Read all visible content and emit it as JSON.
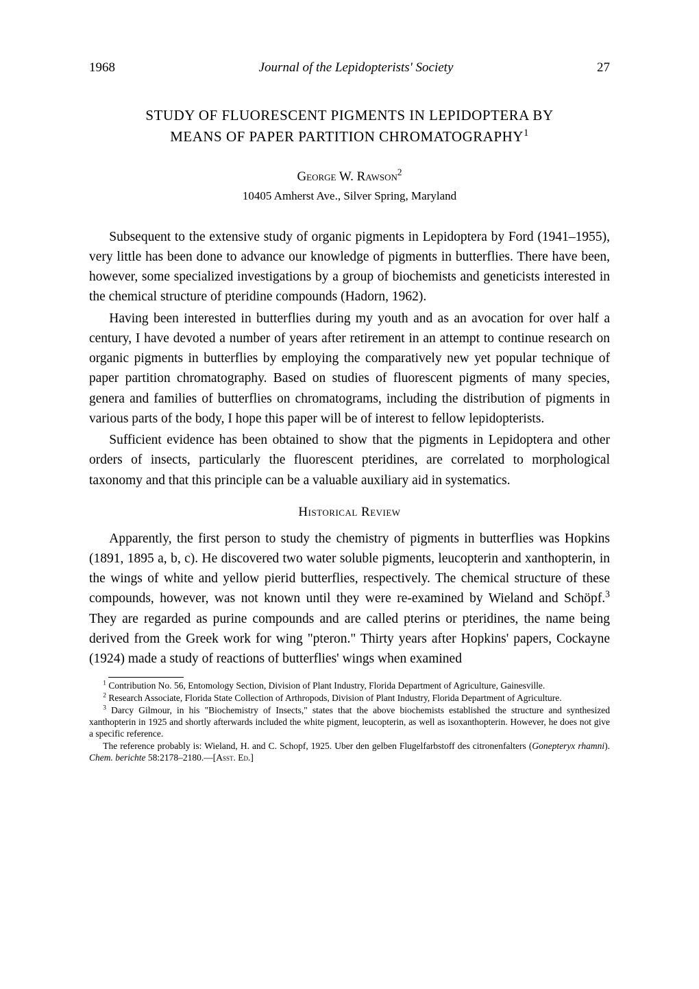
{
  "header": {
    "year": "1968",
    "journal": "Journal of the Lepidopterists' Society",
    "page": "27"
  },
  "title_line1": "STUDY OF FLUORESCENT PIGMENTS IN LEPIDOPTERA BY",
  "title_line2": "MEANS OF PAPER PARTITION CHROMATOGRAPHY",
  "title_sup": "1",
  "author": {
    "name": "George W. Rawson",
    "name_sup": "2",
    "address": "10405 Amherst Ave., Silver Spring, Maryland"
  },
  "para1": "Subsequent to the extensive study of organic pigments in Lepidoptera by Ford (1941–1955), very little has been done to advance our knowledge of pigments in butterflies. There have been, however, some specialized investigations by a group of biochemists and geneticists interested in the chemical structure of pteridine compounds (Hadorn, 1962).",
  "para2": "Having been interested in butterflies during my youth and as an avocation for over half a century, I have devoted a number of years after retirement in an attempt to continue research on organic pigments in butterflies by employing the comparatively new yet popular technique of paper partition chromatography. Based on studies of fluorescent pigments of many species, genera and families of butterflies on chromatograms, including the distribution of pigments in various parts of the body, I hope this paper will be of interest to fellow lepidopterists.",
  "para3": "Sufficient evidence has been obtained to show that the pigments in Lepidoptera and other orders of insects, particularly the fluorescent pteridines, are correlated to morphological taxonomy and that this principle can be a valuable auxiliary aid in systematics.",
  "section_heading": "Historical Review",
  "para4_a": "Apparently, the first person to study the chemistry of pigments in butterflies was Hopkins (1891, 1895 a, b, c). He discovered two water soluble pigments, leucopterin and xanthopterin, in the wings of white and yellow pierid butterflies, respectively. The chemical structure of these compounds, however, was not known until they were re-examined by Wieland and Schöpf.",
  "para4_sup": "3",
  "para4_b": " They are regarded as purine compounds and are called pterins or pteridines, the name being derived from the Greek work for wing \"pteron.\" Thirty years after Hopkins' papers, Cockayne (1924) made a study of reactions of butterflies' wings when examined",
  "footnotes": {
    "f1_sup": "1",
    "f1": " Contribution No. 56, Entomology Section, Division of Plant Industry, Florida Department of Agriculture, Gainesville.",
    "f2_sup": "2",
    "f2": " Research Associate, Florida State Collection of Arthropods, Division of Plant Industry, Florida Department of Agriculture.",
    "f3_sup": "3",
    "f3_a": " Darcy Gilmour, in his \"Biochemistry of Insects,\" states that the above biochemists established the structure and synthesized xanthopterin in 1925 and shortly afterwards included the white pigment, leucopterin, as well as isoxanthopterin. However, he does not give a specific reference.",
    "f3_b": "The reference probably is: Wieland, H. and C. Schopf, 1925. Uber den gelben Flugelfarbstoff des citronenfalters (",
    "f3_ital": "Gonepteryx rhamni",
    "f3_c": "). ",
    "f3_ital2": "Chem. berichte",
    "f3_d": " 58:2178–2180.—[",
    "f3_sc": "Asst. Ed.",
    "f3_e": "]"
  },
  "colors": {
    "bg": "#ffffff",
    "text": "#000000"
  }
}
